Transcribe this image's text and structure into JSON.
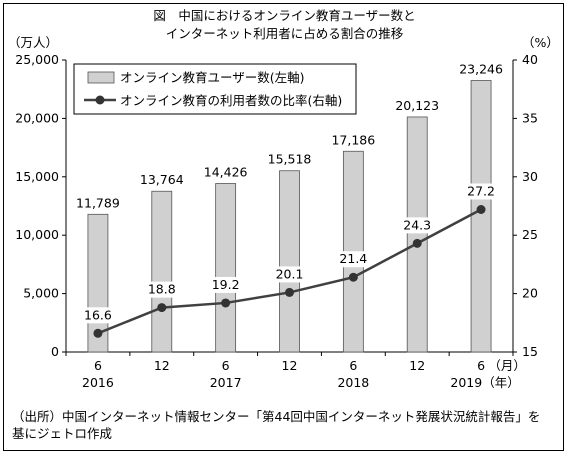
{
  "title_line1": "図　中国におけるオンライン教育ユーザー数と",
  "title_line2": "インターネット利用者に占める割合の推移",
  "left_unit": "（万人）",
  "right_unit": "（%）",
  "source_line1": "（出所）中国インターネット情報センター「第44回中国インターネット発展状況統計報告」を",
  "source_line2": "基にジェトロ作成",
  "chart_data": {
    "type": "bar+line",
    "categories": [
      "6",
      "12",
      "6",
      "12",
      "6",
      "12",
      "6"
    ],
    "years": [
      {
        "label": "2016",
        "index": 0
      },
      {
        "label": "2017",
        "index": 2
      },
      {
        "label": "2018",
        "index": 4
      },
      {
        "label": "2019（年）",
        "index": 6
      }
    ],
    "month_unit": "（月）",
    "series": [
      {
        "name": "オンライン教育ユーザー数(左軸)",
        "type": "bar",
        "axis": "left",
        "color": "#d0d0d0",
        "values": [
          11789,
          13764,
          14426,
          15518,
          17186,
          20123,
          23246
        ],
        "labels": [
          "11,789",
          "13,764",
          "14,426",
          "15,518",
          "17,186",
          "20,123",
          "23,246"
        ]
      },
      {
        "name": "オンライン教育の利用者数の比率(右軸)",
        "type": "line",
        "axis": "right",
        "color": "#404040",
        "values": [
          16.6,
          18.8,
          19.2,
          20.1,
          21.4,
          24.3,
          27.2
        ],
        "labels": [
          "16.6",
          "18.8",
          "19.2",
          "20.1",
          "21.4",
          "24.3",
          "27.2"
        ]
      }
    ],
    "left_axis": {
      "min": 0,
      "max": 25000,
      "ticks": [
        0,
        5000,
        10000,
        15000,
        20000,
        25000
      ],
      "tick_labels": [
        "0",
        "5,000",
        "10,000",
        "15,000",
        "20,000",
        "25,000"
      ]
    },
    "right_axis": {
      "min": 15,
      "max": 40,
      "ticks": [
        15,
        20,
        25,
        30,
        35,
        40
      ],
      "tick_labels": [
        "15",
        "20",
        "25",
        "30",
        "35",
        "40"
      ]
    },
    "grid": false,
    "legend_position": "top-left"
  }
}
